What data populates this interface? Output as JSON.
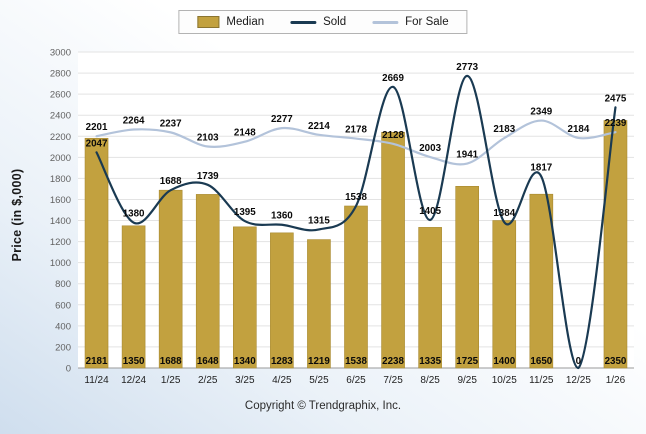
{
  "footer": {
    "copyright": "Copyright © Trendgraphix, Inc."
  },
  "chart_data": {
    "type": "combo",
    "categories": [
      "11/24",
      "12/24",
      "1/25",
      "2/25",
      "3/25",
      "4/25",
      "5/25",
      "6/25",
      "7/25",
      "8/25",
      "9/25",
      "10/25",
      "11/25",
      "12/25",
      "1/26"
    ],
    "series": [
      {
        "name": "Median",
        "type": "bar",
        "color": "#C2A13F",
        "values": [
          2181,
          1350,
          1688,
          1648,
          1340,
          1283,
          1219,
          1538,
          2238,
          1335,
          1725,
          1400,
          1650,
          0,
          2350
        ]
      },
      {
        "name": "Sold",
        "type": "line",
        "color": "#1A3A52",
        "values": [
          2047,
          1380,
          1688,
          1739,
          1395,
          1360,
          1315,
          1538,
          2669,
          1405,
          2773,
          1384,
          1817,
          0,
          2475
        ]
      },
      {
        "name": "For Sale",
        "type": "line",
        "color": "#B3C3DA",
        "values": [
          2201,
          2264,
          2237,
          2103,
          2148,
          2277,
          2214,
          2178,
          2128,
          2003,
          1941,
          2183,
          2349,
          2184,
          2239
        ]
      }
    ],
    "title": "",
    "xlabel": "",
    "ylabel": "Price (in $,000)",
    "ylim": [
      0,
      3000
    ],
    "y_step": 200,
    "grid": true,
    "legend_position": "top-center"
  }
}
